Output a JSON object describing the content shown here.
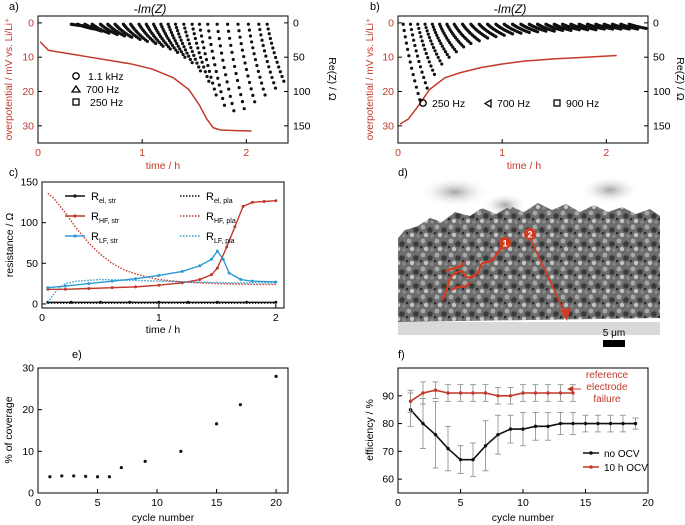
{
  "figure": {
    "background": "#ffffff",
    "red": "#c0392b",
    "blue": "#2e9bd3",
    "black": "#111111"
  },
  "chart_data": [
    {
      "id": "a",
      "type": "scatter",
      "panel_label": "a)",
      "title": "-Im(Z)",
      "xlabel": "time / h",
      "xlim": [
        0,
        2.4
      ],
      "xticks": [
        0,
        1,
        2
      ],
      "ylabel": "overpotential / mV vs. Li/Li⁺",
      "ylim": [
        -2,
        35
      ],
      "yticks": [
        0,
        10,
        20,
        30
      ],
      "y2label": "Re(Z) / Ω",
      "y2lim": [
        -10,
        175
      ],
      "y2ticks": [
        0,
        50,
        100,
        150
      ],
      "legend": [
        {
          "marker": "circle",
          "label": "1.1 kHz"
        },
        {
          "marker": "triangle",
          "label": "700 Hz"
        },
        {
          "marker": "square",
          "label": "250 Hz"
        }
      ],
      "overpotential_curve": {
        "t": [
          0.02,
          0.1,
          0.3,
          0.5,
          0.7,
          0.9,
          1.1,
          1.3,
          1.45,
          1.55,
          1.62,
          1.68,
          1.75,
          1.9,
          2.05
        ],
        "v": [
          5.5,
          8,
          9,
          10,
          11,
          12,
          13.5,
          16,
          19.5,
          24,
          28,
          30.5,
          31.2,
          31.4,
          31.5
        ]
      },
      "spectra": [
        {
          "t_start": 0.32,
          "re_end": 5
        },
        {
          "t_start": 0.38,
          "re_end": 9
        },
        {
          "t_start": 0.45,
          "re_end": 12
        },
        {
          "t_start": 0.52,
          "re_end": 15
        },
        {
          "t_start": 0.6,
          "re_end": 17
        },
        {
          "t_start": 0.67,
          "re_end": 19
        },
        {
          "t_start": 0.74,
          "re_end": 21
        },
        {
          "t_start": 0.82,
          "re_end": 24
        },
        {
          "t_start": 0.89,
          "re_end": 27
        },
        {
          "t_start": 0.97,
          "re_end": 30
        },
        {
          "t_start": 1.04,
          "re_end": 34
        },
        {
          "t_start": 1.11,
          "re_end": 38
        },
        {
          "t_start": 1.18,
          "re_end": 43
        },
        {
          "t_start": 1.25,
          "re_end": 50
        },
        {
          "t_start": 1.32,
          "re_end": 58
        },
        {
          "t_start": 1.4,
          "re_end": 70
        },
        {
          "t_start": 1.48,
          "re_end": 85
        },
        {
          "t_start": 1.55,
          "re_end": 105
        },
        {
          "t_start": 1.63,
          "re_end": 120
        },
        {
          "t_start": 1.72,
          "re_end": 128
        },
        {
          "t_start": 1.82,
          "re_end": 125
        },
        {
          "t_start": 1.92,
          "re_end": 115
        },
        {
          "t_start": 2.02,
          "re_end": 105
        },
        {
          "t_start": 2.12,
          "re_end": 95
        },
        {
          "t_start": 2.2,
          "re_end": 85
        }
      ]
    },
    {
      "id": "b",
      "type": "scatter",
      "panel_label": "b)",
      "title": "-Im(Z)",
      "xlabel": "time / h",
      "xlim": [
        0,
        2.4
      ],
      "xticks": [
        0,
        1,
        2
      ],
      "ylabel": "overpotential / mV vs. Li/Li⁺",
      "ylim": [
        -2,
        35
      ],
      "yticks": [
        0,
        10,
        20,
        30
      ],
      "y2label": "Re(Z) / Ω",
      "y2lim": [
        -10,
        175
      ],
      "y2ticks": [
        0,
        50,
        100,
        150
      ],
      "legend": [
        {
          "marker": "circle",
          "label": "250 Hz"
        },
        {
          "marker": "triangle",
          "label": "700 Hz"
        },
        {
          "marker": "square",
          "label": "900 Hz"
        }
      ],
      "overpotential_curve": {
        "t": [
          0.02,
          0.1,
          0.2,
          0.3,
          0.45,
          0.6,
          0.8,
          1.0,
          1.2,
          1.5,
          1.8,
          2.1
        ],
        "v": [
          29.5,
          28,
          24,
          19.5,
          16,
          14.5,
          13,
          12,
          11.2,
          10.5,
          10,
          9.5
        ]
      },
      "spectra": [
        {
          "t_start": 0.05,
          "re_end": 112
        },
        {
          "t_start": 0.12,
          "re_end": 95
        },
        {
          "t_start": 0.19,
          "re_end": 75
        },
        {
          "t_start": 0.26,
          "re_end": 60
        },
        {
          "t_start": 0.33,
          "re_end": 50
        },
        {
          "t_start": 0.4,
          "re_end": 42
        },
        {
          "t_start": 0.47,
          "re_end": 35
        },
        {
          "t_start": 0.54,
          "re_end": 30
        },
        {
          "t_start": 0.62,
          "re_end": 26
        },
        {
          "t_start": 0.7,
          "re_end": 22
        },
        {
          "t_start": 0.78,
          "re_end": 20
        },
        {
          "t_start": 0.86,
          "re_end": 18
        },
        {
          "t_start": 0.94,
          "re_end": 16
        },
        {
          "t_start": 1.02,
          "re_end": 15
        },
        {
          "t_start": 1.1,
          "re_end": 14
        },
        {
          "t_start": 1.18,
          "re_end": 13
        },
        {
          "t_start": 1.26,
          "re_end": 12
        },
        {
          "t_start": 1.34,
          "re_end": 12
        },
        {
          "t_start": 1.42,
          "re_end": 11
        },
        {
          "t_start": 1.5,
          "re_end": 11
        },
        {
          "t_start": 1.58,
          "re_end": 10
        },
        {
          "t_start": 1.66,
          "re_end": 10
        },
        {
          "t_start": 1.74,
          "re_end": 10
        },
        {
          "t_start": 1.82,
          "re_end": 9
        },
        {
          "t_start": 1.9,
          "re_end": 9
        },
        {
          "t_start": 1.98,
          "re_end": 9
        },
        {
          "t_start": 2.06,
          "re_end": 9
        },
        {
          "t_start": 2.14,
          "re_end": 9
        },
        {
          "t_start": 2.22,
          "re_end": 8
        }
      ]
    },
    {
      "id": "c",
      "type": "line",
      "panel_label": "c)",
      "xlabel": "time / h",
      "xlim": [
        0,
        2.07
      ],
      "xticks": [
        0,
        1,
        2
      ],
      "ylabel": "resistance / Ω",
      "ylim": [
        -5,
        150
      ],
      "yticks": [
        0,
        50,
        100,
        150
      ],
      "series": [
        {
          "name": "R",
          "sub": "el, str",
          "style": "black-solid",
          "t": [
            0.05,
            0.25,
            0.5,
            0.75,
            1.0,
            1.25,
            1.5,
            1.75,
            2.0
          ],
          "v": [
            2,
            2,
            2,
            2,
            2,
            2,
            2,
            2,
            2
          ]
        },
        {
          "name": "R",
          "sub": "el, pla",
          "style": "black-dotted",
          "t": [
            0.05,
            0.5,
            1.0,
            1.5,
            2.0
          ],
          "v": [
            1,
            1,
            1,
            1,
            1
          ]
        },
        {
          "name": "R",
          "sub": "HF, str",
          "style": "red-solid",
          "t": [
            0.05,
            0.2,
            0.4,
            0.6,
            0.8,
            1.0,
            1.2,
            1.35,
            1.45,
            1.5,
            1.58,
            1.65,
            1.72,
            1.8,
            1.9,
            2.0
          ],
          "v": [
            18,
            18,
            19,
            20,
            21,
            23,
            26,
            30,
            36,
            44,
            70,
            95,
            120,
            125,
            126,
            127
          ]
        },
        {
          "name": "R",
          "sub": "HF, pla",
          "style": "red-dotted",
          "t": [
            0.05,
            0.1,
            0.2,
            0.3,
            0.4,
            0.5,
            0.6,
            0.7,
            0.8,
            0.9,
            1.0,
            1.2,
            1.5,
            1.8,
            2.0
          ],
          "v": [
            136,
            130,
            112,
            92,
            75,
            61,
            50,
            42,
            37,
            33,
            30,
            27,
            25,
            24,
            24
          ]
        },
        {
          "name": "R",
          "sub": "LF, str",
          "style": "blue-solid",
          "t": [
            0.05,
            0.2,
            0.4,
            0.6,
            0.8,
            1.0,
            1.2,
            1.35,
            1.45,
            1.5,
            1.55,
            1.6,
            1.7,
            1.8,
            2.0
          ],
          "v": [
            20,
            22,
            25,
            28,
            31,
            35,
            40,
            47,
            55,
            65,
            55,
            38,
            30,
            28,
            27
          ]
        },
        {
          "name": "R",
          "sub": "LF, pla",
          "style": "blue-dotted",
          "t": [
            0.05,
            0.1,
            0.15,
            0.2,
            0.3,
            0.5,
            0.8,
            1.0,
            1.3,
            1.6,
            2.0
          ],
          "v": [
            2,
            12,
            20,
            25,
            28,
            30,
            29,
            28,
            27,
            26,
            26
          ]
        }
      ]
    },
    {
      "id": "d",
      "type": "image",
      "panel_label": "d)",
      "markers": [
        "1",
        "2"
      ],
      "scale_bar": "5 μm"
    },
    {
      "id": "e",
      "type": "scatter",
      "panel_label": "e)",
      "xlabel": "cycle number",
      "xlim": [
        0,
        21
      ],
      "xticks": [
        0,
        5,
        10,
        15,
        20
      ],
      "ylabel": "% of coverage",
      "ylim": [
        0,
        30
      ],
      "yticks": [
        0,
        10,
        20,
        30
      ],
      "x": [
        1,
        2,
        3,
        4,
        5,
        6,
        7,
        9,
        12,
        15,
        17,
        20
      ],
      "y": [
        3.9,
        4.1,
        4.1,
        4.0,
        3.9,
        3.9,
        6.1,
        7.6,
        10.0,
        16.6,
        21.2,
        28.0
      ]
    },
    {
      "id": "f",
      "type": "line",
      "panel_label": "f)",
      "xlabel": "cycle number",
      "xlim": [
        0,
        20
      ],
      "xticks": [
        0,
        5,
        10,
        15,
        20
      ],
      "ylabel": "efficiency / %",
      "ylim": [
        55,
        100
      ],
      "yticks": [
        60,
        70,
        80,
        90
      ],
      "annotation": [
        "reference",
        "electrode",
        "failure"
      ],
      "series": [
        {
          "name": "no OCV",
          "color": "#111111",
          "x": [
            1,
            2,
            3,
            4,
            5,
            6,
            7,
            8,
            9,
            10,
            11,
            12,
            13,
            14,
            15,
            16,
            17,
            18,
            19
          ],
          "y": [
            85,
            80,
            76,
            71,
            67,
            67,
            72,
            76,
            78,
            78,
            79,
            79,
            80,
            80,
            80,
            80,
            80,
            80,
            80
          ],
          "err": [
            6,
            9,
            12,
            8,
            5,
            6,
            9,
            7,
            5,
            6,
            5,
            5,
            4,
            4,
            3,
            3,
            3,
            3,
            2
          ]
        },
        {
          "name": "10 h OCV",
          "color": "#c0392b",
          "x": [
            1,
            2,
            3,
            4,
            5,
            6,
            7,
            8,
            9,
            10,
            11,
            12,
            13,
            14
          ],
          "y": [
            88,
            91,
            92,
            91,
            91,
            91,
            91,
            90,
            90,
            91,
            91,
            91,
            91,
            91
          ],
          "err": [
            4,
            4,
            3,
            3,
            3,
            3,
            3,
            3,
            3,
            3,
            3,
            3,
            3,
            3
          ]
        }
      ]
    }
  ]
}
